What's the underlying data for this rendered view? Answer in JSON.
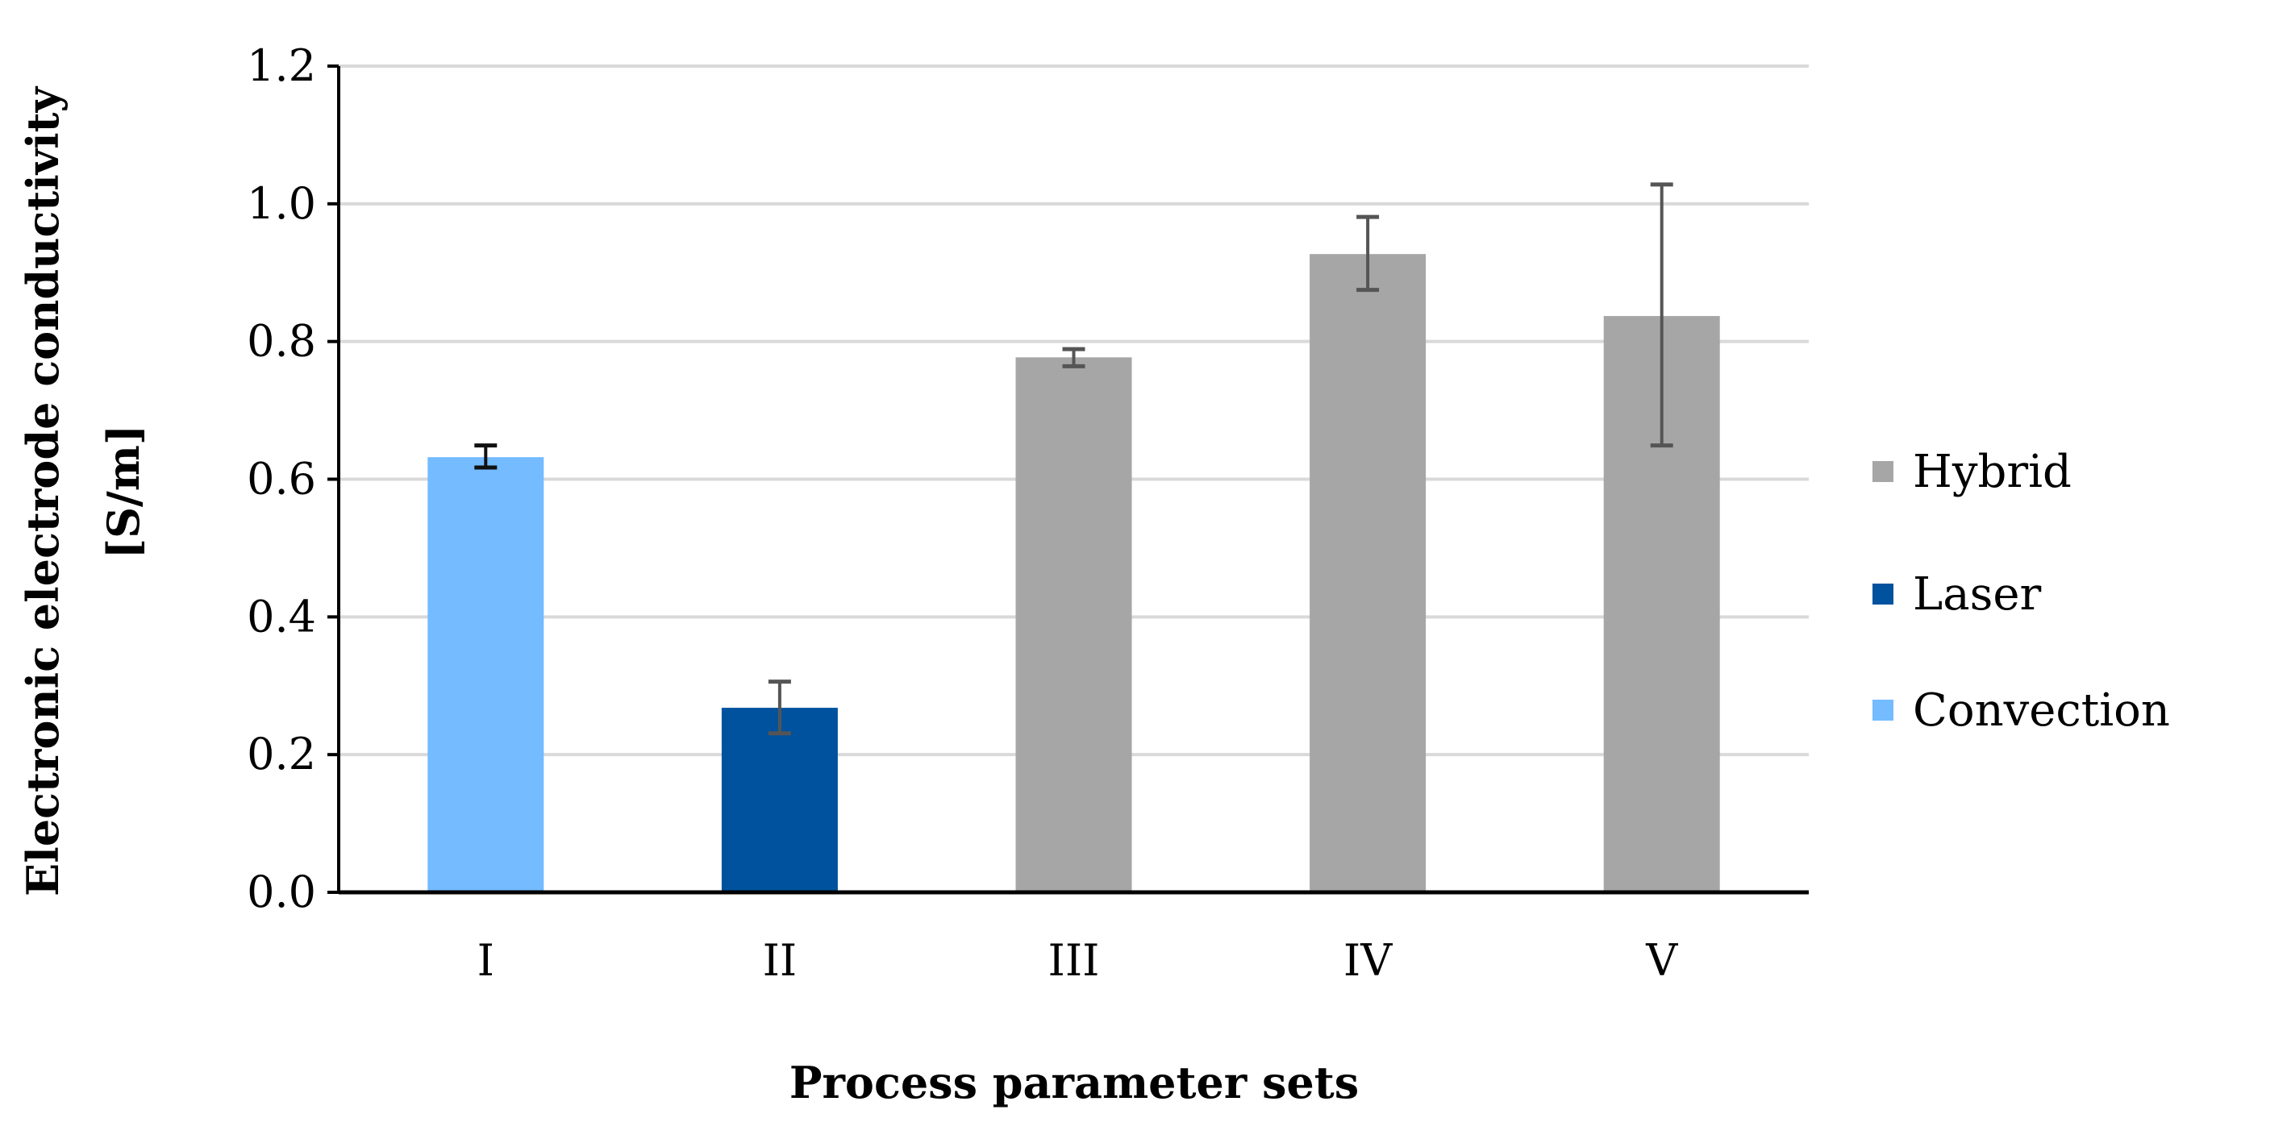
{
  "chart_data": {
    "type": "bar",
    "title": "",
    "xlabel": "Process parameter sets",
    "ylabel": [
      "Electronic electrode conductivity",
      "[S/m]"
    ],
    "categories": [
      "I",
      "II",
      "III",
      "IV",
      "V"
    ],
    "values": [
      0.632,
      0.268,
      0.777,
      0.927,
      0.837
    ],
    "error_low": [
      0.617,
      0.231,
      0.764,
      0.875,
      0.649
    ],
    "error_high": [
      0.649,
      0.306,
      0.789,
      0.981,
      1.028
    ],
    "bar_series": [
      "Convection",
      "Laser",
      "Hybrid",
      "Hybrid",
      "Hybrid"
    ],
    "series": [
      {
        "name": "Hybrid",
        "color": "#a6a6a6"
      },
      {
        "name": "Laser",
        "color": "#00529e"
      },
      {
        "name": "Convection",
        "color": "#74bbff"
      }
    ],
    "ylim": [
      0,
      1.2
    ],
    "yticks": [
      "0.0",
      "0.2",
      "0.4",
      "0.6",
      "0.8",
      "1.0",
      "1.2"
    ],
    "grid": true,
    "legend_position": "right"
  }
}
